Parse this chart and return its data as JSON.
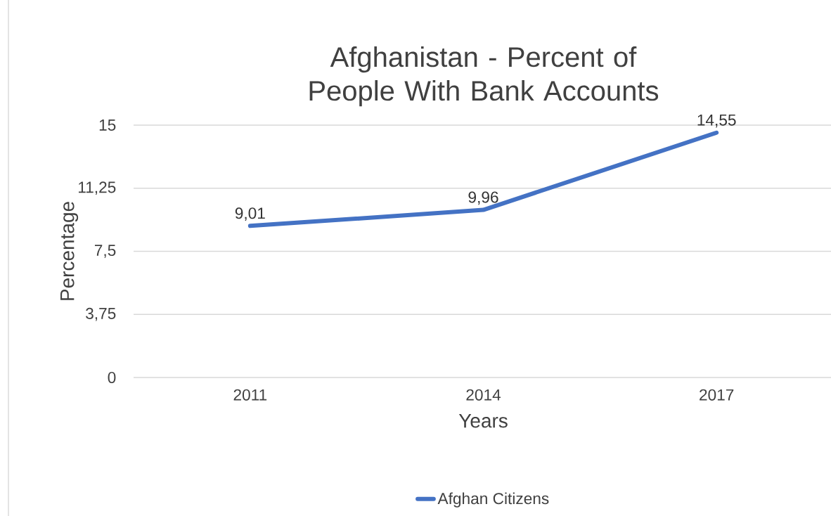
{
  "chart_data": {
    "type": "line",
    "title": "Afghanistan - Percent of People With Bank Accounts",
    "xlabel": "Years",
    "ylabel": "Percentage",
    "categories": [
      "2011",
      "2014",
      "2017"
    ],
    "series": [
      {
        "name": "Afghan Citizens",
        "color": "#4472c4",
        "values": [
          9.01,
          9.96,
          14.55
        ],
        "value_labels": [
          "9,01",
          "9,96",
          "14,55"
        ]
      }
    ],
    "ylim": [
      0,
      15
    ],
    "yticks": [
      0,
      {
        "value": 3.75,
        "label": "3,75"
      },
      {
        "value": 7.5,
        "label": "7,5"
      },
      {
        "value": 11.25,
        "label": "11,25"
      },
      15
    ],
    "grid": "y",
    "legend": "bottom",
    "marker": "none",
    "line_style": "solid"
  }
}
